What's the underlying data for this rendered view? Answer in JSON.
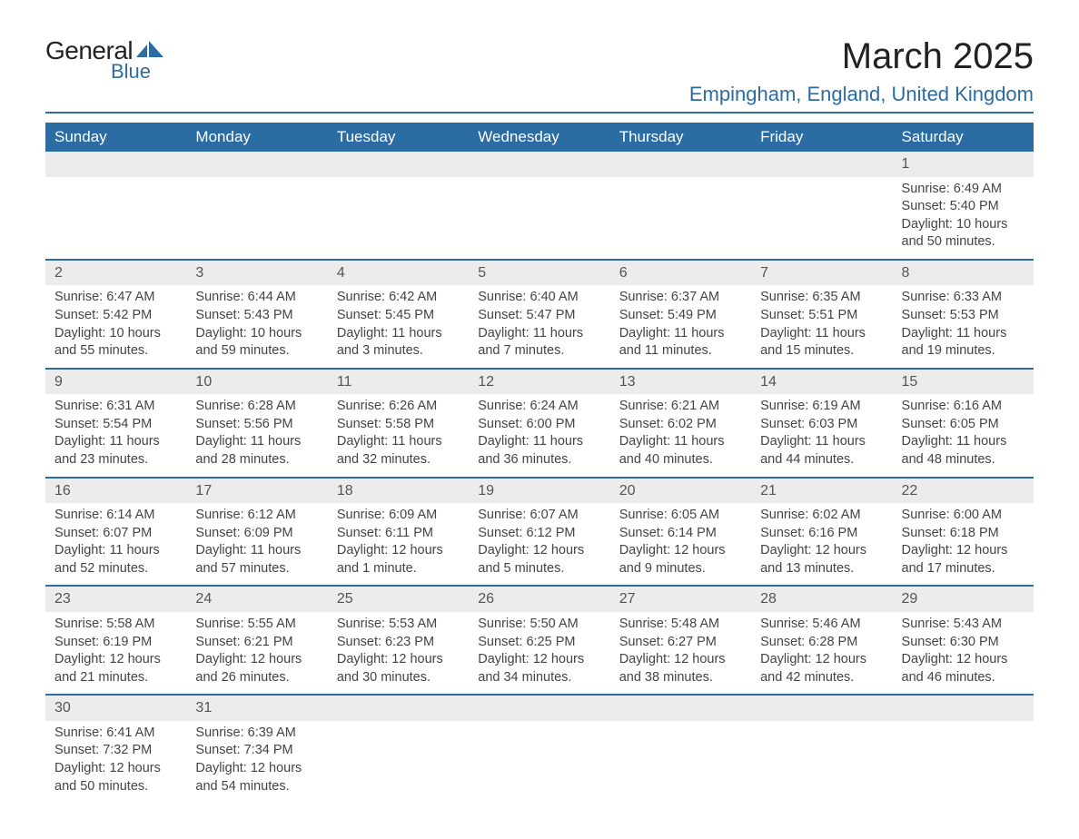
{
  "logo": {
    "line1": "General",
    "line2": "Blue",
    "icon_color": "#2b6ca3"
  },
  "title": "March 2025",
  "subtitle": "Empingham, England, United Kingdom",
  "colors": {
    "header_bg": "#2b6ca3",
    "header_fg": "#ffffff",
    "daynum_bg": "#ececec",
    "row_border": "#2b6ca3",
    "text": "#444444",
    "accent": "#2b6ca3"
  },
  "columns": [
    "Sunday",
    "Monday",
    "Tuesday",
    "Wednesday",
    "Thursday",
    "Friday",
    "Saturday"
  ],
  "weeks": [
    [
      null,
      null,
      null,
      null,
      null,
      null,
      {
        "n": "1",
        "sunrise": "6:49 AM",
        "sunset": "5:40 PM",
        "daylight": "10 hours and 50 minutes."
      }
    ],
    [
      {
        "n": "2",
        "sunrise": "6:47 AM",
        "sunset": "5:42 PM",
        "daylight": "10 hours and 55 minutes."
      },
      {
        "n": "3",
        "sunrise": "6:44 AM",
        "sunset": "5:43 PM",
        "daylight": "10 hours and 59 minutes."
      },
      {
        "n": "4",
        "sunrise": "6:42 AM",
        "sunset": "5:45 PM",
        "daylight": "11 hours and 3 minutes."
      },
      {
        "n": "5",
        "sunrise": "6:40 AM",
        "sunset": "5:47 PM",
        "daylight": "11 hours and 7 minutes."
      },
      {
        "n": "6",
        "sunrise": "6:37 AM",
        "sunset": "5:49 PM",
        "daylight": "11 hours and 11 minutes."
      },
      {
        "n": "7",
        "sunrise": "6:35 AM",
        "sunset": "5:51 PM",
        "daylight": "11 hours and 15 minutes."
      },
      {
        "n": "8",
        "sunrise": "6:33 AM",
        "sunset": "5:53 PM",
        "daylight": "11 hours and 19 minutes."
      }
    ],
    [
      {
        "n": "9",
        "sunrise": "6:31 AM",
        "sunset": "5:54 PM",
        "daylight": "11 hours and 23 minutes."
      },
      {
        "n": "10",
        "sunrise": "6:28 AM",
        "sunset": "5:56 PM",
        "daylight": "11 hours and 28 minutes."
      },
      {
        "n": "11",
        "sunrise": "6:26 AM",
        "sunset": "5:58 PM",
        "daylight": "11 hours and 32 minutes."
      },
      {
        "n": "12",
        "sunrise": "6:24 AM",
        "sunset": "6:00 PM",
        "daylight": "11 hours and 36 minutes."
      },
      {
        "n": "13",
        "sunrise": "6:21 AM",
        "sunset": "6:02 PM",
        "daylight": "11 hours and 40 minutes."
      },
      {
        "n": "14",
        "sunrise": "6:19 AM",
        "sunset": "6:03 PM",
        "daylight": "11 hours and 44 minutes."
      },
      {
        "n": "15",
        "sunrise": "6:16 AM",
        "sunset": "6:05 PM",
        "daylight": "11 hours and 48 minutes."
      }
    ],
    [
      {
        "n": "16",
        "sunrise": "6:14 AM",
        "sunset": "6:07 PM",
        "daylight": "11 hours and 52 minutes."
      },
      {
        "n": "17",
        "sunrise": "6:12 AM",
        "sunset": "6:09 PM",
        "daylight": "11 hours and 57 minutes."
      },
      {
        "n": "18",
        "sunrise": "6:09 AM",
        "sunset": "6:11 PM",
        "daylight": "12 hours and 1 minute."
      },
      {
        "n": "19",
        "sunrise": "6:07 AM",
        "sunset": "6:12 PM",
        "daylight": "12 hours and 5 minutes."
      },
      {
        "n": "20",
        "sunrise": "6:05 AM",
        "sunset": "6:14 PM",
        "daylight": "12 hours and 9 minutes."
      },
      {
        "n": "21",
        "sunrise": "6:02 AM",
        "sunset": "6:16 PM",
        "daylight": "12 hours and 13 minutes."
      },
      {
        "n": "22",
        "sunrise": "6:00 AM",
        "sunset": "6:18 PM",
        "daylight": "12 hours and 17 minutes."
      }
    ],
    [
      {
        "n": "23",
        "sunrise": "5:58 AM",
        "sunset": "6:19 PM",
        "daylight": "12 hours and 21 minutes."
      },
      {
        "n": "24",
        "sunrise": "5:55 AM",
        "sunset": "6:21 PM",
        "daylight": "12 hours and 26 minutes."
      },
      {
        "n": "25",
        "sunrise": "5:53 AM",
        "sunset": "6:23 PM",
        "daylight": "12 hours and 30 minutes."
      },
      {
        "n": "26",
        "sunrise": "5:50 AM",
        "sunset": "6:25 PM",
        "daylight": "12 hours and 34 minutes."
      },
      {
        "n": "27",
        "sunrise": "5:48 AM",
        "sunset": "6:27 PM",
        "daylight": "12 hours and 38 minutes."
      },
      {
        "n": "28",
        "sunrise": "5:46 AM",
        "sunset": "6:28 PM",
        "daylight": "12 hours and 42 minutes."
      },
      {
        "n": "29",
        "sunrise": "5:43 AM",
        "sunset": "6:30 PM",
        "daylight": "12 hours and 46 minutes."
      }
    ],
    [
      {
        "n": "30",
        "sunrise": "6:41 AM",
        "sunset": "7:32 PM",
        "daylight": "12 hours and 50 minutes."
      },
      {
        "n": "31",
        "sunrise": "6:39 AM",
        "sunset": "7:34 PM",
        "daylight": "12 hours and 54 minutes."
      },
      null,
      null,
      null,
      null,
      null
    ]
  ],
  "labels": {
    "sunrise": "Sunrise:",
    "sunset": "Sunset:",
    "daylight": "Daylight:"
  }
}
